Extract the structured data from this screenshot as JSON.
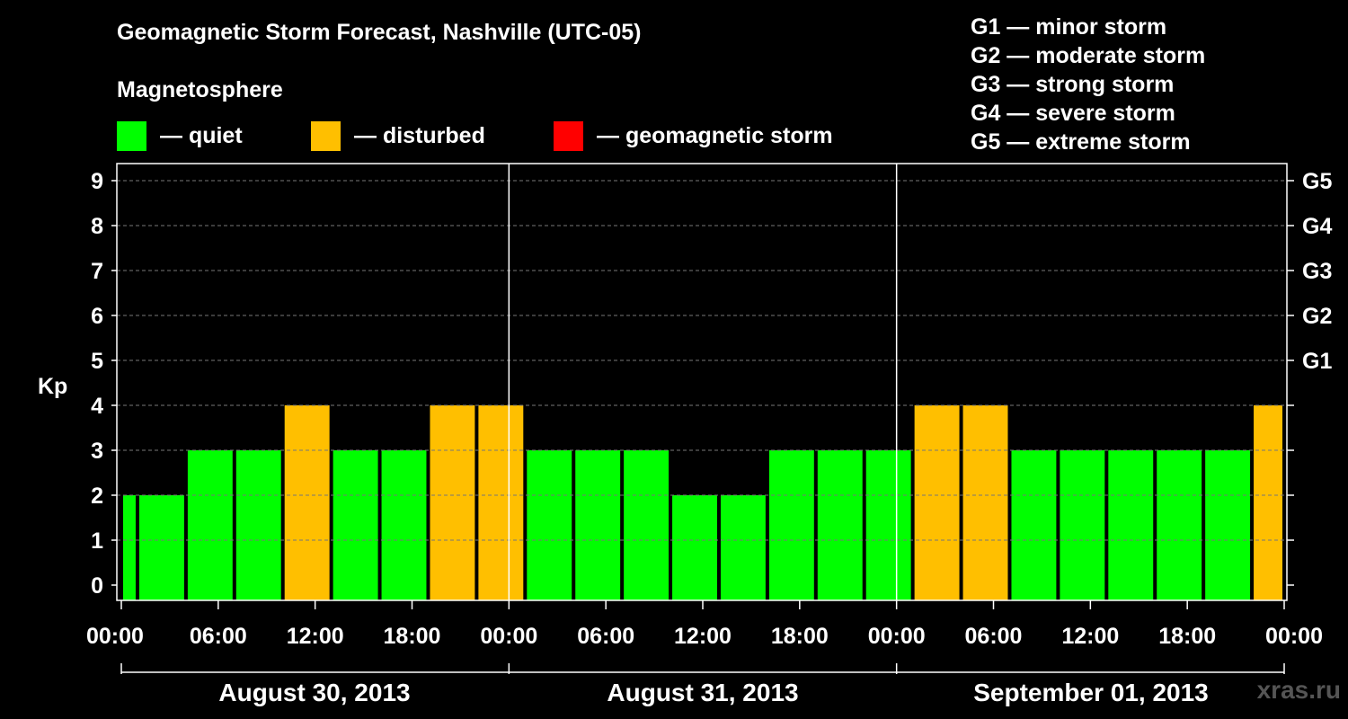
{
  "title": "Geomagnetic Storm Forecast, Nashville (UTC-05)",
  "legend": {
    "heading": "Magnetosphere",
    "items": [
      {
        "label": "— quiet",
        "color": "#00ff00"
      },
      {
        "label": "— disturbed",
        "color": "#ffbf00"
      },
      {
        "label": "— geomagnetic storm",
        "color": "#ff0000"
      }
    ]
  },
  "storm_scale": [
    "G1 — minor storm",
    "G2 — moderate storm",
    "G3 — strong storm",
    "G4 — severe storm",
    "G5 — extreme storm"
  ],
  "watermark": "xras.ru",
  "chart_data": {
    "type": "bar",
    "ylabel": "Kp",
    "ylim": [
      0,
      9
    ],
    "yticks": [
      "0",
      "1",
      "2",
      "3",
      "4",
      "5",
      "6",
      "7",
      "8",
      "9"
    ],
    "right_ticks": [
      {
        "kp": 5,
        "label": "G1"
      },
      {
        "kp": 6,
        "label": "G2"
      },
      {
        "kp": 7,
        "label": "G3"
      },
      {
        "kp": 8,
        "label": "G4"
      },
      {
        "kp": 9,
        "label": "G5"
      }
    ],
    "xticks": [
      "00:00",
      "06:00",
      "12:00",
      "18:00",
      "00:00",
      "06:00",
      "12:00",
      "18:00",
      "00:00",
      "06:00",
      "12:00",
      "18:00",
      "00:00"
    ],
    "days": [
      "August 30, 2013",
      "August 31, 2013",
      "September 01, 2013"
    ],
    "grid": true,
    "colors": {
      "quiet": "#00ff00",
      "disturbed": "#ffbf00",
      "storm": "#ff0000"
    },
    "bars": [
      {
        "start": "2013-08-30 00:00",
        "end": "2013-08-30 01:00",
        "kp": 2
      },
      {
        "start": "2013-08-30 01:00",
        "end": "2013-08-30 04:00",
        "kp": 2
      },
      {
        "start": "2013-08-30 04:00",
        "end": "2013-08-30 07:00",
        "kp": 3
      },
      {
        "start": "2013-08-30 07:00",
        "end": "2013-08-30 10:00",
        "kp": 3
      },
      {
        "start": "2013-08-30 10:00",
        "end": "2013-08-30 13:00",
        "kp": 4
      },
      {
        "start": "2013-08-30 13:00",
        "end": "2013-08-30 16:00",
        "kp": 3
      },
      {
        "start": "2013-08-30 16:00",
        "end": "2013-08-30 19:00",
        "kp": 3
      },
      {
        "start": "2013-08-30 19:00",
        "end": "2013-08-30 22:00",
        "kp": 4
      },
      {
        "start": "2013-08-30 22:00",
        "end": "2013-08-31 01:00",
        "kp": 4
      },
      {
        "start": "2013-08-31 01:00",
        "end": "2013-08-31 04:00",
        "kp": 3
      },
      {
        "start": "2013-08-31 04:00",
        "end": "2013-08-31 07:00",
        "kp": 3
      },
      {
        "start": "2013-08-31 07:00",
        "end": "2013-08-31 10:00",
        "kp": 3
      },
      {
        "start": "2013-08-31 10:00",
        "end": "2013-08-31 13:00",
        "kp": 2
      },
      {
        "start": "2013-08-31 13:00",
        "end": "2013-08-31 16:00",
        "kp": 2
      },
      {
        "start": "2013-08-31 16:00",
        "end": "2013-08-31 19:00",
        "kp": 3
      },
      {
        "start": "2013-08-31 19:00",
        "end": "2013-08-31 22:00",
        "kp": 3
      },
      {
        "start": "2013-08-31 22:00",
        "end": "2013-09-01 01:00",
        "kp": 3
      },
      {
        "start": "2013-09-01 01:00",
        "end": "2013-09-01 04:00",
        "kp": 4
      },
      {
        "start": "2013-09-01 04:00",
        "end": "2013-09-01 07:00",
        "kp": 4
      },
      {
        "start": "2013-09-01 07:00",
        "end": "2013-09-01 10:00",
        "kp": 3
      },
      {
        "start": "2013-09-01 10:00",
        "end": "2013-09-01 13:00",
        "kp": 3
      },
      {
        "start": "2013-09-01 13:00",
        "end": "2013-09-01 16:00",
        "kp": 3
      },
      {
        "start": "2013-09-01 16:00",
        "end": "2013-09-01 19:00",
        "kp": 3
      },
      {
        "start": "2013-09-01 19:00",
        "end": "2013-09-01 22:00",
        "kp": 3
      },
      {
        "start": "2013-09-01 22:00",
        "end": "2013-09-02 00:00",
        "kp": 4
      }
    ]
  }
}
